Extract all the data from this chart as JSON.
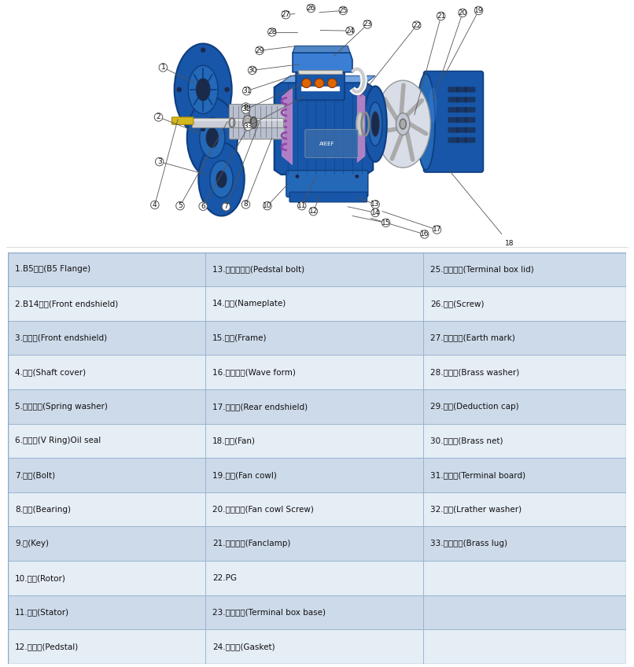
{
  "bg_color": "#ffffff",
  "table_border_color": "#8aaac8",
  "table_text_color": "#111111",
  "parts": [
    [
      "1.B5法兰(B5 Flange)",
      "13.铝底脚螺栓(Pedstal bolt)",
      "25.接线盒盖(Terminal box lid)"
    ],
    [
      "2.B14法兰(Front endshield)",
      "14.铭牌(Nameplate)",
      "26.螺丝(Screw)"
    ],
    [
      "3.前端盖(Front endshield)",
      "15.机坐(Frame)",
      "27.接地标志(Earth mark)"
    ],
    [
      "4.轴套(Shaft cover)",
      "16.波形垄圈(Wave form)",
      "28.铜螺帽(Brass washer)"
    ],
    [
      "5.弹簧垄圈(Spring washer)",
      "17.后端盖(Rear endshield)",
      "29.扣帽(Deduction cap)"
    ],
    [
      "6.密封圈(V Ring)Oil seal",
      "18.风叶(Fan)",
      "30.铜垄片(Brass net)"
    ],
    [
      "7.螺栓(Bolt)",
      "19.风罩(Fan cowl)",
      "31.接线板(Terminal board)"
    ],
    [
      "8.轴承(Bearing)",
      "20.风罩螺丝(Fan cowl Screw)",
      "32.皮垄(Lrather washer)"
    ],
    [
      "9.键(Key)",
      "21.风叶卡簧(Fanclamp)",
      "33.铜连接片(Brass lug)"
    ],
    [
      "10.转子(Rotor)",
      "22.PG",
      ""
    ],
    [
      "11.定子(Stator)",
      "23.接线盒座(Terminal box base)",
      ""
    ],
    [
      "12.铝底脚(Pedstal)",
      "24.密封垄(Gasket)",
      ""
    ]
  ],
  "row_colors": [
    "#cddaea",
    "#e5edf5"
  ],
  "font_size_table": 7.5,
  "dh": 0.635,
  "blue1": "#1756a8",
  "blue2": "#0e3d80",
  "blue3": "#3a7fd4",
  "blue4": "#2468b8",
  "gray1": "#b0b8c8",
  "gray2": "#8890a0",
  "gray3": "#d0d8e8",
  "silver": "#c8cdd8",
  "dark": "#1a2a4a",
  "yellow": "#d4b820",
  "orange": "#e06820",
  "pink": "#cc88cc",
  "white": "#ffffff"
}
